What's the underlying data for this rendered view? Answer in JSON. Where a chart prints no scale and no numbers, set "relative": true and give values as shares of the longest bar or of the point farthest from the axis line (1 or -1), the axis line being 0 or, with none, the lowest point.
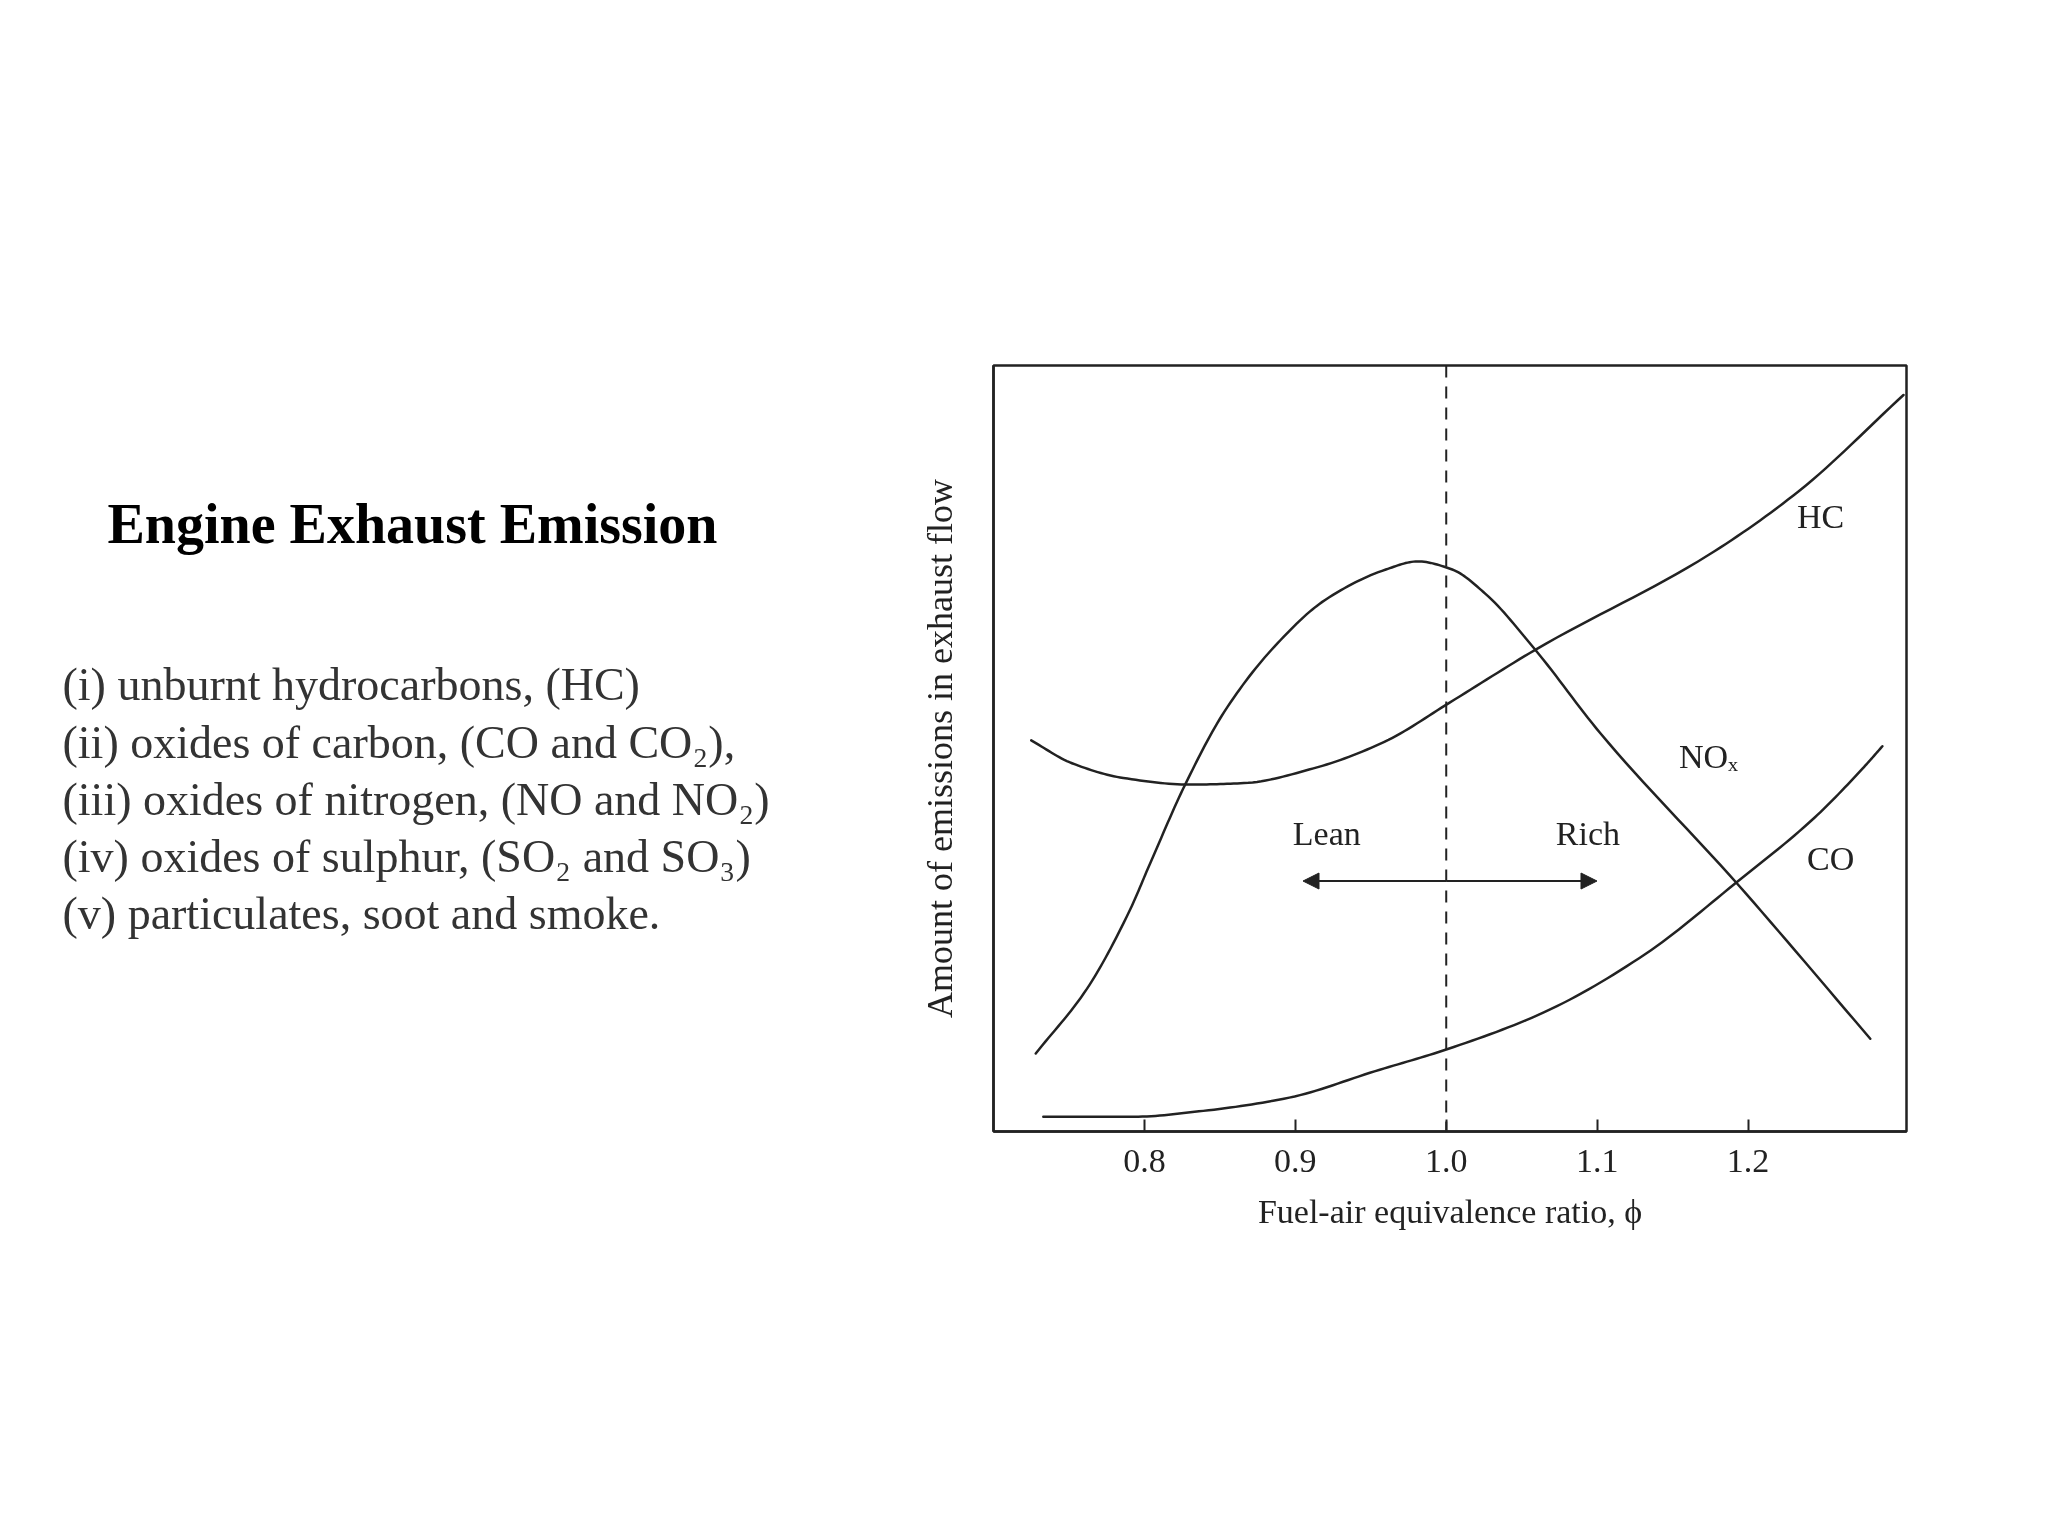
{
  "chart_data": {
    "type": "line",
    "title": "Engine Exhaust Emission",
    "xlabel": "Fuel-air equivalence ratio, ϕ",
    "ylabel": "Amount of emissions in exhaust flow",
    "relative": true,
    "xlim": [
      0.7,
      1.305
    ],
    "xticks": [
      0.8,
      0.9,
      {
        "value": 1.0,
        "label": "1.0"
      },
      1.1,
      1.2
    ],
    "series": [
      {
        "name": "HC",
        "color": "#222222",
        "x": [
          0.725,
          0.752,
          0.786,
          0.83,
          0.866,
          0.912,
          0.959,
          1.002,
          1.059,
          1.174,
          1.234,
          1.303
        ],
        "values": [
          0.531,
          0.5,
          0.48,
          0.471,
          0.473,
          0.493,
          0.529,
          0.582,
          0.654,
          0.783,
          0.87,
          1.0
        ]
      },
      {
        "name": "NOₓ",
        "color": "#222222",
        "x": [
          0.728,
          0.762,
          0.79,
          0.804,
          0.827,
          0.853,
          0.886,
          0.92,
          0.96,
          0.981,
          1.004,
          1.026,
          1.059,
          1.102,
          1.193,
          1.281
        ],
        "values": [
          0.106,
          0.194,
          0.299,
          0.365,
          0.471,
          0.57,
          0.658,
          0.722,
          0.763,
          0.774,
          0.763,
          0.73,
          0.654,
          0.541,
          0.336,
          0.126
        ]
      },
      {
        "name": "CO",
        "color": "#222222",
        "x": [
          0.733,
          0.793,
          0.839,
          0.896,
          0.953,
          1.001,
          1.065,
          1.132,
          1.191,
          1.244,
          1.276,
          1.289
        ],
        "values": [
          0.02,
          0.02,
          0.028,
          0.046,
          0.082,
          0.112,
          0.162,
          0.241,
          0.336,
          0.426,
          0.493,
          0.523
        ]
      }
    ],
    "ref_lines": [
      {
        "axis": "x",
        "value": 1.0,
        "color": "#222222",
        "line_style": "dashed"
      }
    ],
    "annotations": [
      "(i) unburnt hydrocarbons, (HC)",
      "(ii) oxides of carbon, (CO and CO₂),",
      "(iii) oxides of nitrogen, (NO and NO₂)",
      "(iv) oxides of sulphur, (SO₂ and SO₃)",
      "(v) particulates, soot and smoke.",
      "Lean",
      "Rich"
    ]
  }
}
